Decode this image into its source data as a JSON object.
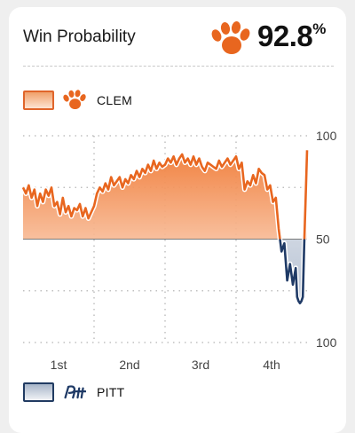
{
  "header": {
    "title": "Win Probability",
    "leader_logo": "clemson-paw-icon",
    "probability": "92.8",
    "probability_unit": "%"
  },
  "teams": {
    "top": {
      "abbr": "CLEM",
      "logo": "clemson-paw-icon",
      "color": "#e8661f"
    },
    "bottom": {
      "abbr": "PITT",
      "logo": "pitt-script-logo",
      "color": "#1f3a66"
    }
  },
  "chart_data": {
    "type": "area",
    "title": "",
    "xlabel": "",
    "ylabel": "",
    "x_ticks": [
      "1st",
      "2nd",
      "3rd",
      "4th"
    ],
    "y_ticks": [
      {
        "value": 100,
        "label": "100"
      },
      {
        "value": 50,
        "label": "50"
      },
      {
        "value": 0,
        "label": "100"
      }
    ],
    "xlim": [
      0,
      100
    ],
    "ylim": [
      0,
      100
    ],
    "baseline": 50,
    "grid": true,
    "series": [
      {
        "name": "CLEM",
        "color": "#e8661f",
        "x": [
          0,
          1,
          2,
          3,
          4,
          5,
          6,
          7,
          8,
          9,
          10,
          11,
          12,
          13,
          14,
          15,
          16,
          17,
          18,
          19,
          20,
          21,
          22,
          23,
          24,
          25,
          26,
          27,
          28,
          29,
          30,
          31,
          32,
          33,
          34,
          35,
          36,
          37,
          38,
          39,
          40,
          41,
          42,
          43,
          44,
          45,
          46,
          47,
          48,
          49,
          50,
          51,
          52,
          53,
          54,
          55,
          56,
          57,
          58,
          59,
          60,
          61,
          62,
          63,
          64,
          65,
          66,
          67,
          68,
          69,
          70,
          71,
          72,
          73,
          74,
          75,
          76,
          77,
          78,
          79,
          80,
          81,
          82,
          83,
          84,
          85,
          86,
          87,
          88,
          89,
          90,
          91,
          92,
          93,
          94,
          95,
          96,
          96.5,
          97,
          97.5,
          98,
          98.5,
          99,
          99.5,
          100
        ],
        "values": [
          75,
          72,
          76,
          70,
          74,
          66,
          72,
          68,
          74,
          71,
          75,
          66,
          68,
          62,
          70,
          63,
          66,
          61,
          65,
          64,
          67,
          61,
          65,
          60,
          63,
          66,
          72,
          75,
          73,
          77,
          74,
          80,
          76,
          78,
          80,
          75,
          79,
          77,
          81,
          79,
          83,
          80,
          84,
          82,
          86,
          83,
          88,
          84,
          87,
          85,
          86,
          89,
          87,
          90,
          86,
          89,
          91,
          87,
          89,
          86,
          90,
          86,
          89,
          85,
          83,
          87,
          86,
          85,
          84,
          88,
          85,
          87,
          89,
          86,
          88,
          90,
          84,
          87,
          74,
          78,
          76,
          81,
          77,
          84,
          82,
          81,
          74,
          76,
          68,
          70,
          55,
          44,
          48,
          30,
          38,
          28,
          36,
          22,
          20,
          19,
          20,
          22,
          48,
          70,
          93
        ]
      }
    ]
  }
}
